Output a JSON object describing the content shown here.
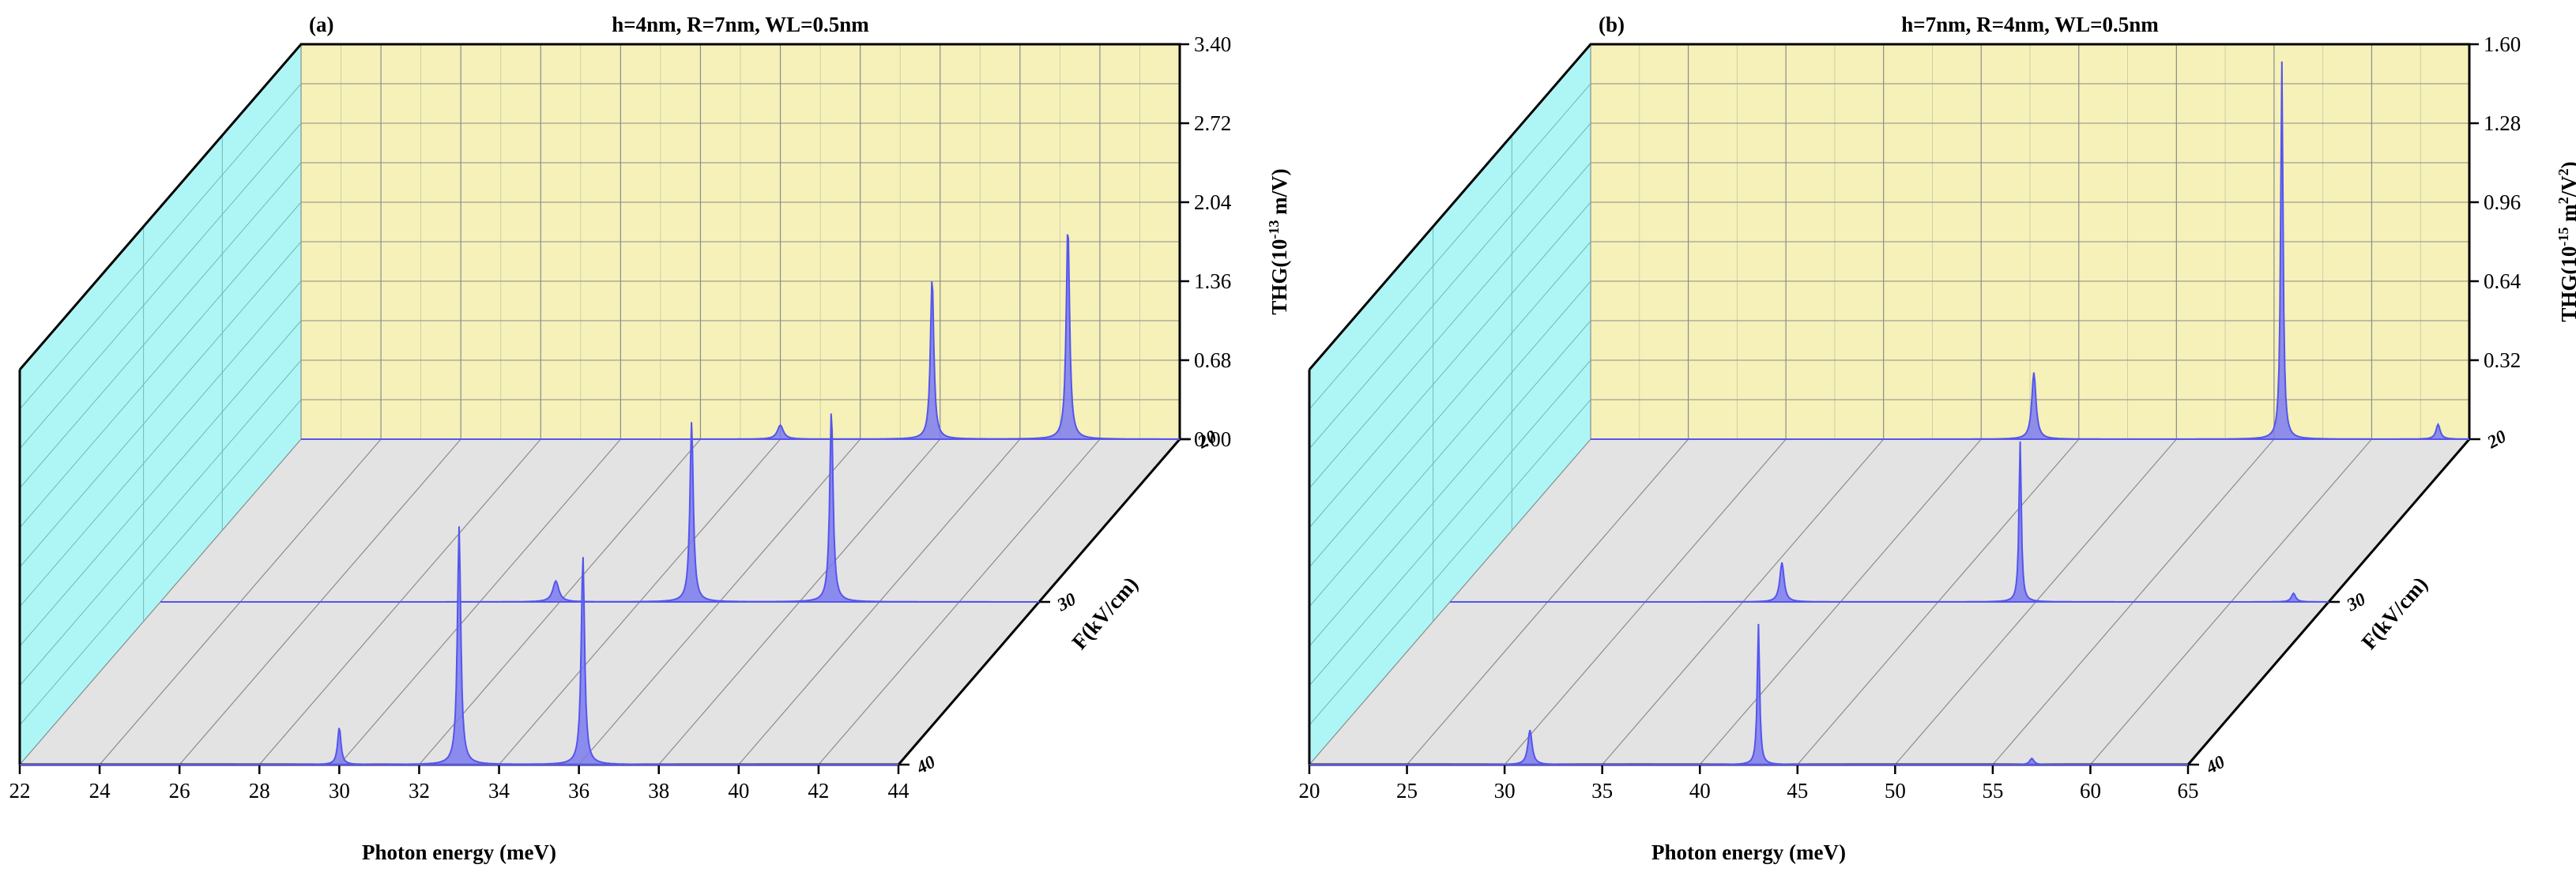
{
  "colors": {
    "back_wall": "#f5f1b9",
    "side_wall": "#aef6f6",
    "floor": "#e3e3e3",
    "grid": "#8c8c8c",
    "curve": "#5555ee",
    "fill": "#7b7bf0"
  },
  "chart_data": [
    {
      "type": "area",
      "panel_label": "(a)",
      "title": "h=4nm, R=7nm, WL=0.5nm",
      "xlabel": "Photon energy (meV)",
      "ylabel": "F(kV/cm)",
      "zlabel": "THG(10",
      "zlabel_exp": "-13",
      "zlabel_unit": " m/V)",
      "xlim": [
        22,
        44
      ],
      "x_ticks": [
        "22",
        "24",
        "26",
        "28",
        "30",
        "32",
        "34",
        "36",
        "38",
        "40",
        "42",
        "44"
      ],
      "zlim": [
        0,
        3.4
      ],
      "z_ticks": [
        "0.00",
        "0.68",
        "1.36",
        "2.04",
        "2.72",
        "3.40"
      ],
      "y_ticks": [
        "20",
        "30",
        "40"
      ],
      "series": [
        {
          "name": "20",
          "peaks": [
            {
              "x": 34.0,
              "h": 0.12
            },
            {
              "x": 37.8,
              "h": 1.4
            },
            {
              "x": 41.2,
              "h": 1.85
            }
          ]
        },
        {
          "name": "30",
          "peaks": [
            {
              "x": 31.9,
              "h": 0.18
            },
            {
              "x": 35.3,
              "h": 1.55
            },
            {
              "x": 38.8,
              "h": 1.65
            }
          ]
        },
        {
          "name": "40",
          "peaks": [
            {
              "x": 30.0,
              "h": 0.32
            },
            {
              "x": 33.0,
              "h": 2.05
            },
            {
              "x": 36.1,
              "h": 1.8
            }
          ]
        }
      ]
    },
    {
      "type": "area",
      "panel_label": "(b)",
      "title": "h=7nm, R=4nm, WL=0.5nm",
      "xlabel": "Photon energy (meV)",
      "ylabel": "F(kV/cm)",
      "zlabel": "THG(10",
      "zlabel_exp": "-15",
      "zlabel_unit": " m",
      "zlabel_exp2": "2",
      "zlabel_unit2": "/V",
      "zlabel_exp3": "2",
      "zlabel_end": ")",
      "xlim": [
        20,
        65
      ],
      "x_ticks": [
        "20",
        "25",
        "30",
        "35",
        "40",
        "45",
        "50",
        "55",
        "60",
        "65"
      ],
      "zlim": [
        0,
        1.6
      ],
      "z_ticks": [
        "0.32",
        "0.64",
        "0.96",
        "1.28",
        "1.60"
      ],
      "z_tick_values": [
        0.32,
        0.64,
        0.96,
        1.28,
        1.6
      ],
      "y_ticks": [
        "20",
        "30",
        "40"
      ],
      "series": [
        {
          "name": "20",
          "peaks": [
            {
              "x": 42.7,
              "h": 0.27
            },
            {
              "x": 55.4,
              "h": 1.53
            },
            {
              "x": 63.4,
              "h": 0.06
            }
          ]
        },
        {
          "name": "30",
          "peaks": [
            {
              "x": 37.0,
              "h": 0.16
            },
            {
              "x": 49.2,
              "h": 0.65
            },
            {
              "x": 63.2,
              "h": 0.035
            }
          ]
        },
        {
          "name": "40",
          "peaks": [
            {
              "x": 31.3,
              "h": 0.14
            },
            {
              "x": 43.0,
              "h": 0.57
            },
            {
              "x": 57.0,
              "h": 0.025
            }
          ]
        }
      ]
    }
  ]
}
